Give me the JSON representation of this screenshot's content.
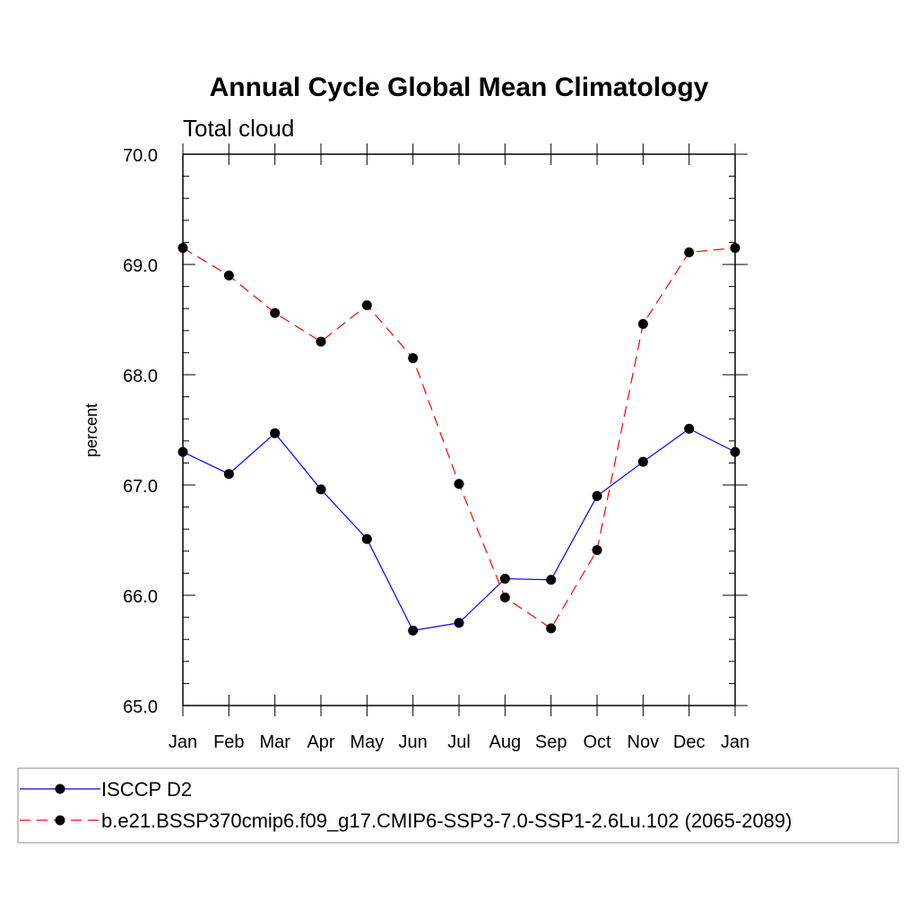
{
  "chart_data": {
    "type": "line",
    "title": "Annual Cycle Global Mean Climatology",
    "subtitle": "Total cloud",
    "xlabel": "",
    "ylabel": "percent",
    "categories": [
      "Jan",
      "Feb",
      "Mar",
      "Apr",
      "May",
      "Jun",
      "Jul",
      "Aug",
      "Sep",
      "Oct",
      "Nov",
      "Dec",
      "Jan"
    ],
    "ylim": [
      65.0,
      70.0
    ],
    "yticks": [
      "65.0",
      "66.0",
      "67.0",
      "68.0",
      "69.0",
      "70.0"
    ],
    "grid": false,
    "legend_position": "bottom",
    "series": [
      {
        "name": "ISCCP D2",
        "color": "#0000ff",
        "dash": "solid",
        "marker": "circle",
        "values": [
          67.3,
          67.1,
          67.47,
          66.96,
          66.51,
          65.68,
          65.75,
          66.15,
          66.14,
          66.9,
          67.21,
          67.51,
          67.3
        ]
      },
      {
        "name": "b.e21.BSSP370cmip6.f09_g17.CMIP6-SSP3-7.0-SSP1-2.6Lu.102 (2065-2089)",
        "color": "#ff0000",
        "dash": "dashed",
        "marker": "circle",
        "values": [
          69.15,
          68.9,
          68.56,
          68.3,
          68.63,
          68.15,
          67.01,
          65.98,
          65.7,
          66.41,
          68.46,
          69.11,
          69.15
        ]
      }
    ]
  }
}
